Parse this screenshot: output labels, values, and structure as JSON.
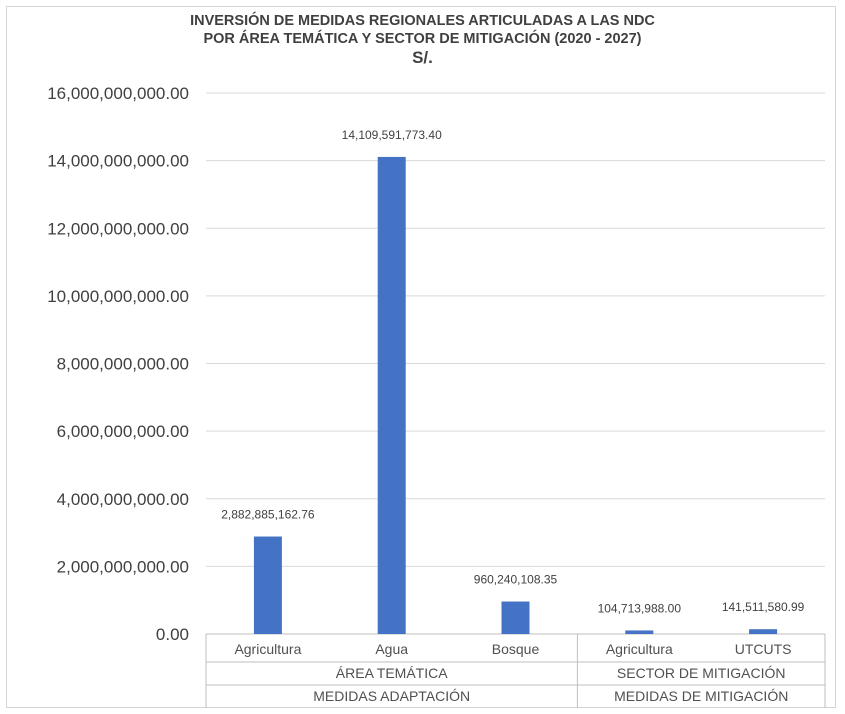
{
  "chart_data": {
    "type": "bar",
    "title_line1": "INVERSIÓN DE MEDIDAS REGIONALES ARTICULADAS A LAS NDC",
    "title_line2": "POR ÁREA TEMÁTICA Y SECTOR DE MITIGACIÓN (2020 - 2027)",
    "title_line3": "S/.",
    "categories": [
      "Agricultura",
      "Agua",
      "Bosque",
      "Agricultura",
      "UTCUTS"
    ],
    "values": [
      2882885162.76,
      14109591773.4,
      960240108.35,
      104713988.0,
      141511580.99
    ],
    "data_labels": [
      "2,882,885,162.76",
      "14,109,591,773.40",
      "960,240,108.35",
      "104,713,988.00",
      "141,511,580.99"
    ],
    "ylim": [
      0,
      16000000000
    ],
    "yticks": [
      0,
      2000000000,
      4000000000,
      6000000000,
      8000000000,
      10000000000,
      12000000000,
      14000000000,
      16000000000
    ],
    "ytick_labels": [
      "0.00",
      "2,000,000,000.00",
      "4,000,000,000.00",
      "6,000,000,000.00",
      "8,000,000,000.00",
      "10,000,000,000.00",
      "12,000,000,000.00",
      "14,000,000,000.00",
      "16,000,000,000.00"
    ],
    "grid": true,
    "bar_color": "#4472C4",
    "group_levels": [
      [
        {
          "label": "ÁREA TEMÁTICA",
          "span": [
            0,
            2
          ]
        },
        {
          "label": "SECTOR DE MITIGACIÓN",
          "span": [
            3,
            4
          ]
        }
      ],
      [
        {
          "label": "MEDIDAS ADAPTACIÓN",
          "span": [
            0,
            2
          ]
        },
        {
          "label": "MEDIDAS DE MITIGACIÓN",
          "span": [
            3,
            4
          ]
        }
      ]
    ]
  }
}
